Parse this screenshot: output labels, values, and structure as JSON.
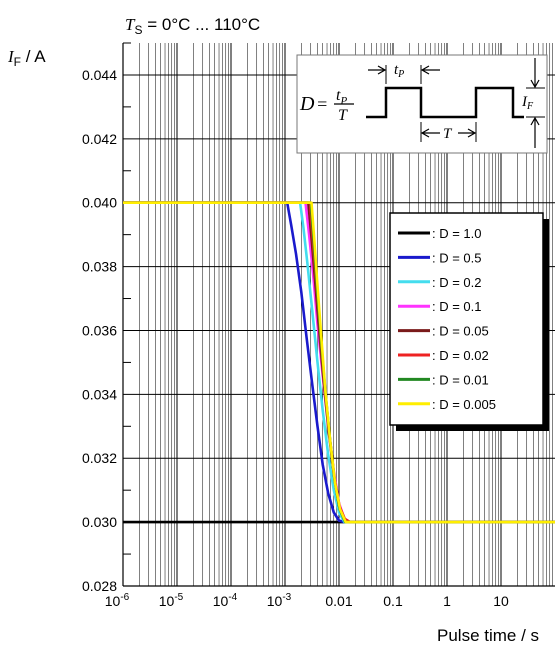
{
  "chart_data": {
    "type": "line",
    "title": "T_S = 0°C ... 110°C",
    "title_parts": {
      "var": "T",
      "sub": "S",
      "rest": " = 0°C ... 110°C"
    },
    "ylabel_parts": {
      "var": "I",
      "sub": "F",
      "rest": " / A"
    },
    "xlabel": "Pulse time / s",
    "x_scale": "log",
    "xlim": [
      1e-06,
      100
    ],
    "ylim": [
      0.028,
      0.045
    ],
    "x_ticks": [
      {
        "label": "10",
        "sup": "-6",
        "value": 1e-06
      },
      {
        "label": "10",
        "sup": "-5",
        "value": 1e-05
      },
      {
        "label": "10",
        "sup": "-4",
        "value": 0.0001
      },
      {
        "label": "10",
        "sup": "-3",
        "value": 0.001
      },
      {
        "label": "0.01",
        "sup": "",
        "value": 0.01
      },
      {
        "label": "0.1",
        "sup": "",
        "value": 0.1
      },
      {
        "label": "1",
        "sup": "",
        "value": 1
      },
      {
        "label": "10",
        "sup": "",
        "value": 10
      }
    ],
    "y_ticks": [
      "0.028",
      "0.030",
      "0.032",
      "0.034",
      "0.036",
      "0.038",
      "0.040",
      "0.042",
      "0.044"
    ],
    "grid": true,
    "legend_position": "right",
    "series": [
      {
        "name": ": D = 1.0",
        "color": "#000000",
        "x": [
          1e-06,
          100
        ],
        "y": [
          0.03,
          0.03
        ]
      },
      {
        "name": ": D = 0.5",
        "color": "#1a1acc",
        "x": [
          1e-06,
          0.0011,
          0.0013,
          0.0016,
          0.002,
          0.0025,
          0.0032,
          0.004,
          0.005,
          0.0063,
          0.008,
          0.01,
          0.0126,
          100
        ],
        "y": [
          0.04,
          0.04,
          0.0393,
          0.0384,
          0.0372,
          0.0358,
          0.0343,
          0.033,
          0.0318,
          0.0309,
          0.0303,
          0.03005,
          0.03,
          0.03
        ]
      },
      {
        "name": ": D = 0.2",
        "color": "#44ddee",
        "x": [
          1e-06,
          0.0019,
          0.0022,
          0.0026,
          0.0032,
          0.004,
          0.005,
          0.0063,
          0.008,
          0.01,
          0.0126,
          0.015,
          100
        ],
        "y": [
          0.04,
          0.04,
          0.0392,
          0.0381,
          0.0366,
          0.035,
          0.0335,
          0.0321,
          0.031,
          0.0303,
          0.03,
          0.03,
          0.03
        ]
      },
      {
        "name": ": D = 0.1",
        "color": "#ff33ff",
        "x": [
          1e-06,
          0.0024,
          0.0028,
          0.0033,
          0.004,
          0.005,
          0.0063,
          0.008,
          0.01,
          0.0126,
          0.016,
          100
        ],
        "y": [
          0.04,
          0.04,
          0.039,
          0.0378,
          0.0362,
          0.0346,
          0.033,
          0.0316,
          0.0306,
          0.0301,
          0.03,
          0.03
        ]
      },
      {
        "name": ": D = 0.05",
        "color": "#7a1a1a",
        "x": [
          1e-06,
          0.0027,
          0.0031,
          0.0036,
          0.0043,
          0.0052,
          0.0065,
          0.008,
          0.01,
          0.0126,
          0.016,
          100
        ],
        "y": [
          0.04,
          0.04,
          0.0389,
          0.0376,
          0.036,
          0.0344,
          0.0328,
          0.0315,
          0.0305,
          0.0301,
          0.03,
          0.03
        ]
      },
      {
        "name": ": D = 0.02",
        "color": "#ee2222",
        "x": [
          1e-06,
          0.0029,
          0.0033,
          0.0038,
          0.0045,
          0.0054,
          0.0067,
          0.0082,
          0.0102,
          0.0128,
          0.016,
          100
        ],
        "y": [
          0.04,
          0.04,
          0.0388,
          0.0375,
          0.0359,
          0.0343,
          0.0327,
          0.0314,
          0.0305,
          0.0301,
          0.03,
          0.03
        ]
      },
      {
        "name": ": D = 0.01",
        "color": "#228822",
        "x": [
          1e-06,
          0.003,
          0.0034,
          0.0039,
          0.0046,
          0.0055,
          0.0068,
          0.0083,
          0.0103,
          0.013,
          0.016,
          100
        ],
        "y": [
          0.04,
          0.04,
          0.0388,
          0.0374,
          0.0358,
          0.0342,
          0.0326,
          0.0313,
          0.0304,
          0.03,
          0.03,
          0.03
        ]
      },
      {
        "name": ": D = 0.005",
        "color": "#ffee00",
        "x": [
          1e-06,
          0.0031,
          0.0035,
          0.004,
          0.0047,
          0.0056,
          0.0069,
          0.0085,
          0.0105,
          0.0133,
          0.017,
          100
        ],
        "y": [
          0.04,
          0.04,
          0.0388,
          0.0374,
          0.0358,
          0.0341,
          0.0325,
          0.0312,
          0.0304,
          0.03,
          0.03,
          0.03
        ]
      }
    ],
    "inset": {
      "formula_lhs": "D",
      "formula_num": "t",
      "formula_num_sub": "P",
      "formula_den": "T",
      "pulse_label": "t",
      "pulse_label_sub": "P",
      "period_label": "T",
      "current_label": "I",
      "current_label_sub": "F"
    }
  }
}
